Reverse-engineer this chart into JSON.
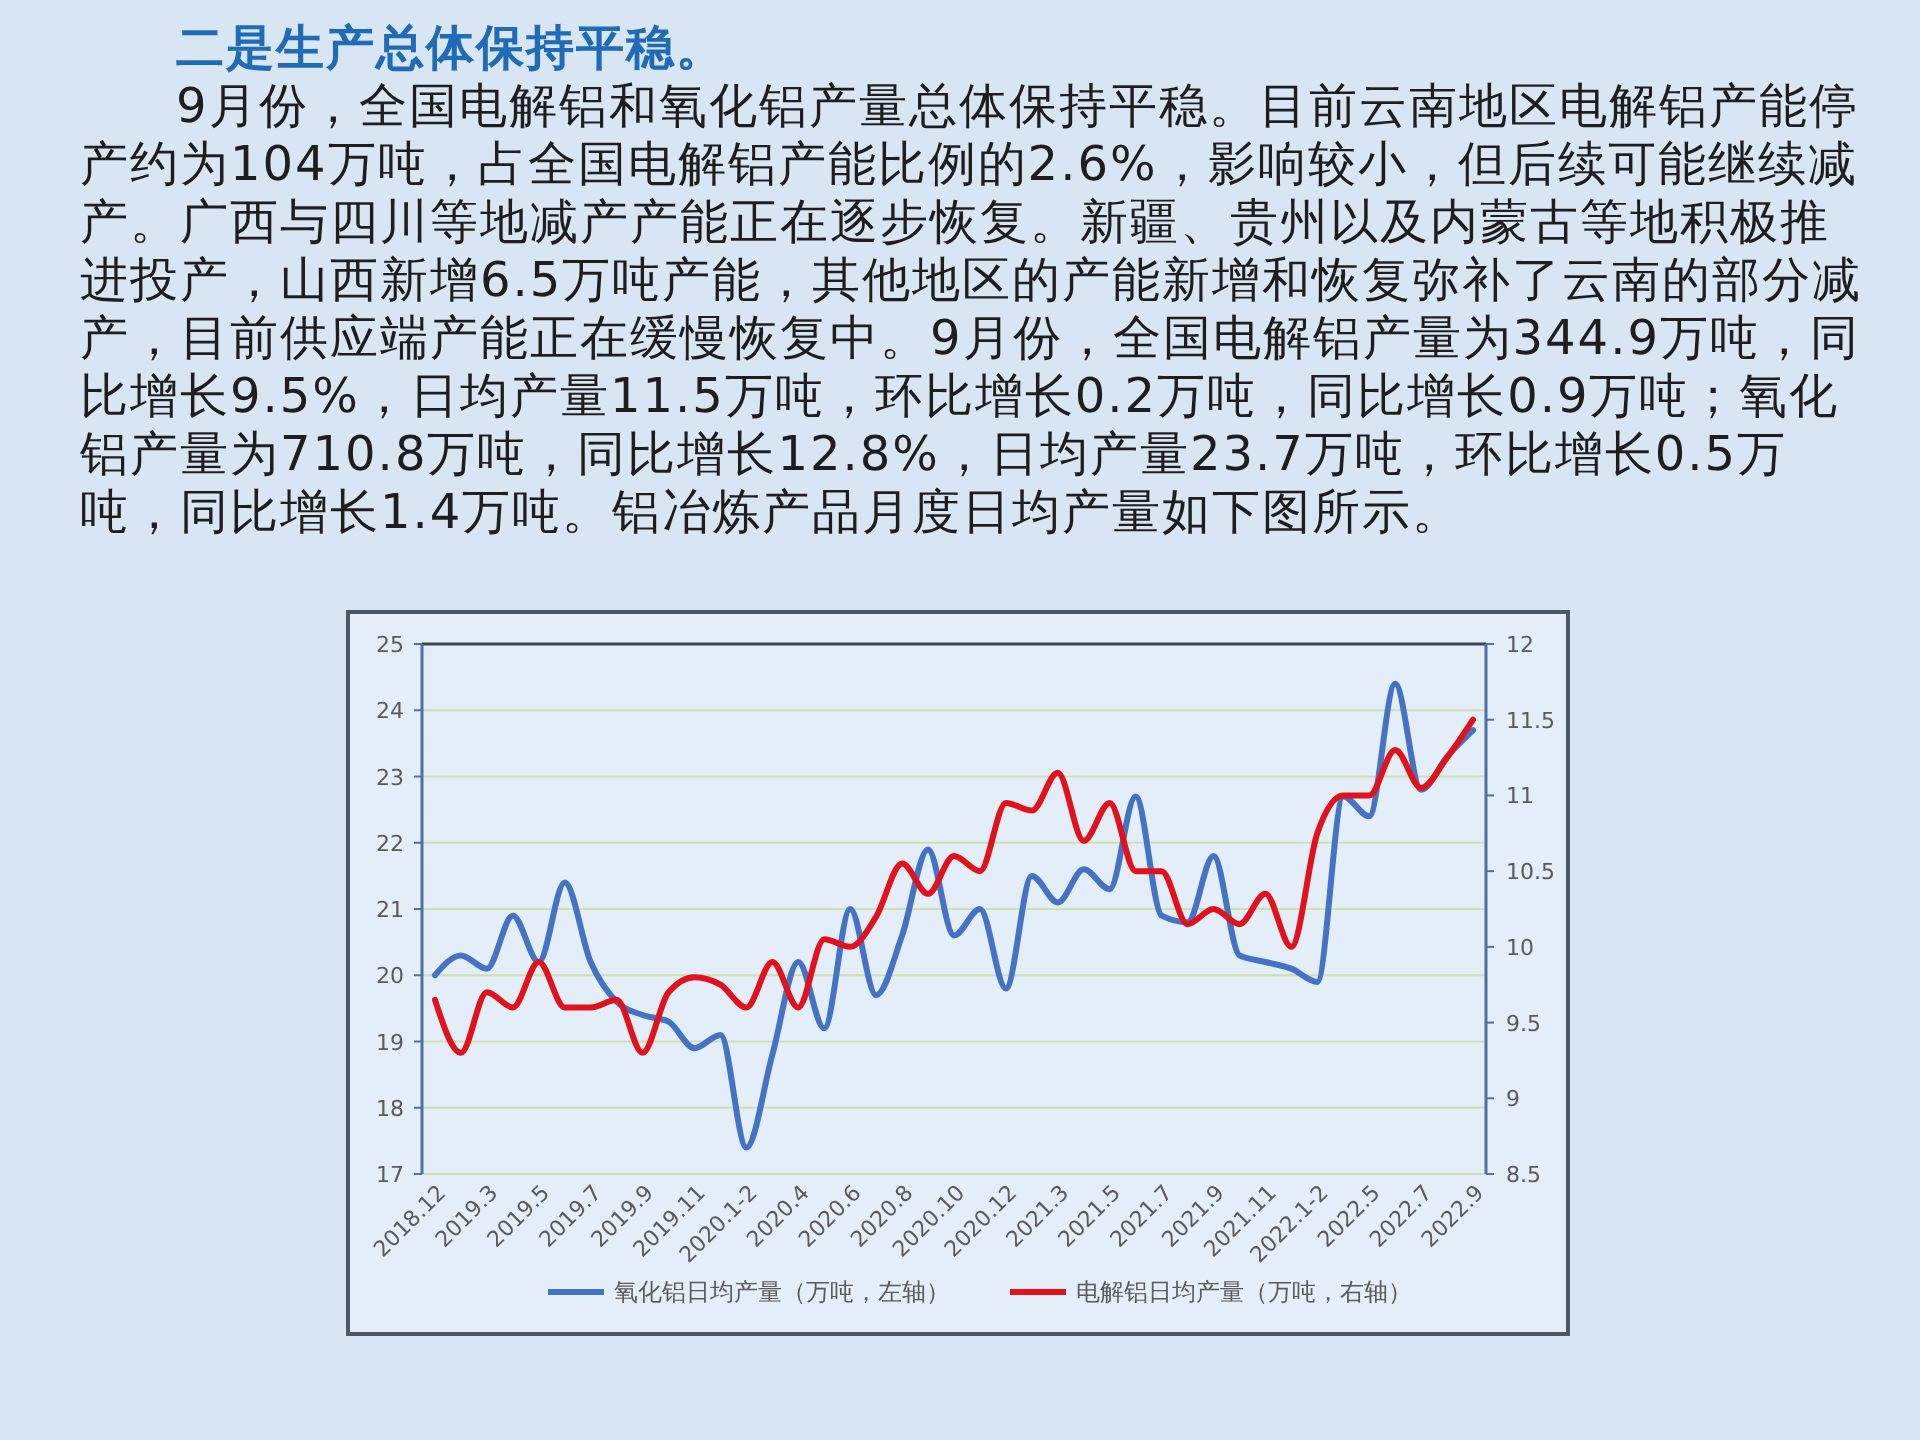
{
  "chart_data": {
    "type": "line",
    "title": "二是生产总体保持平稳。",
    "subtitle": "9月份，全国电解铝和氧化铝产量总体保持平稳。目前云南地区电解铝产能停产约为104万吨，占全国电解铝产能比例的2.6%，影响较小，但后续可能继续减产。广西与四川等地减产产能正在逐步恢复。新疆、贵州以及内蒙古等地积极推进投产，山西新增6.5万吨产能，其他地区的产能新增和恢复弥补了云南的部分减产，目前供应端产能正在缓慢恢复中。9月份，全国电解铝产量为344.9万吨，同比增长9.5%，日均产量11.5万吨，环比增长0.2万吨，同比增长0.9万吨；氧化铝产量为710.8万吨，同比增长12.8%，日均产量23.7万吨，环比增长0.5万吨，同比增长1.4万吨。铝冶炼产品月度日均产量如下图所示。",
    "categories": [
      "2018.12",
      null,
      "2019.3",
      null,
      "2019.5",
      null,
      "2019.7",
      null,
      "2019.9",
      null,
      "2019.11",
      null,
      "2020.1-2",
      null,
      "2020.4",
      null,
      "2020.6",
      null,
      "2020.8",
      null,
      "2020.10",
      null,
      "2020.12",
      null,
      "2021.3",
      null,
      "2021.5",
      null,
      "2021.7",
      null,
      "2021.9",
      null,
      "2021.11",
      null,
      "2022.1-2",
      null,
      "2022.5",
      null,
      "2022.7",
      null,
      "2022.9"
    ],
    "series": [
      {
        "name": "氧化铝日均产量（万吨，左轴）",
        "color": "#4472c4",
        "values": [
          20.0,
          20.3,
          20.1,
          20.9,
          20.2,
          21.4,
          20.2,
          19.6,
          19.4,
          19.3,
          18.9,
          19.1,
          17.4,
          18.8,
          20.2,
          19.2,
          21.0,
          19.7,
          20.6,
          21.9,
          20.6,
          21.0,
          19.8,
          21.5,
          21.1,
          21.6,
          21.3,
          22.7,
          20.9,
          20.8,
          21.8,
          20.3,
          20.2,
          20.1,
          19.9,
          22.7,
          22.4,
          24.4,
          22.8,
          23.3,
          23.7
        ]
      },
      {
        "name": "电解铝日均产量（万吨，右轴）",
        "color": "#e3111b",
        "axis": "y2",
        "values": [
          9.65,
          9.3,
          9.7,
          9.6,
          9.9,
          9.6,
          9.6,
          9.65,
          9.3,
          9.7,
          9.8,
          9.75,
          9.6,
          9.9,
          9.6,
          10.05,
          10.0,
          10.2,
          10.55,
          10.35,
          10.6,
          10.5,
          10.95,
          10.9,
          11.15,
          10.7,
          10.95,
          10.5,
          10.5,
          10.15,
          10.25,
          10.15,
          10.35,
          10.0,
          10.75,
          11.0,
          11.0,
          11.3,
          11.05,
          11.25,
          11.5
        ]
      }
    ],
    "ylim": [
      17,
      25
    ],
    "yticks": [
      17,
      18,
      19,
      20,
      21,
      22,
      23,
      24,
      25
    ],
    "y2lim": [
      8.5,
      12
    ],
    "y2ticks": [
      8.5,
      9,
      9.5,
      10,
      10.5,
      11,
      11.5,
      12
    ],
    "grid": "y",
    "legend": "bottom"
  }
}
